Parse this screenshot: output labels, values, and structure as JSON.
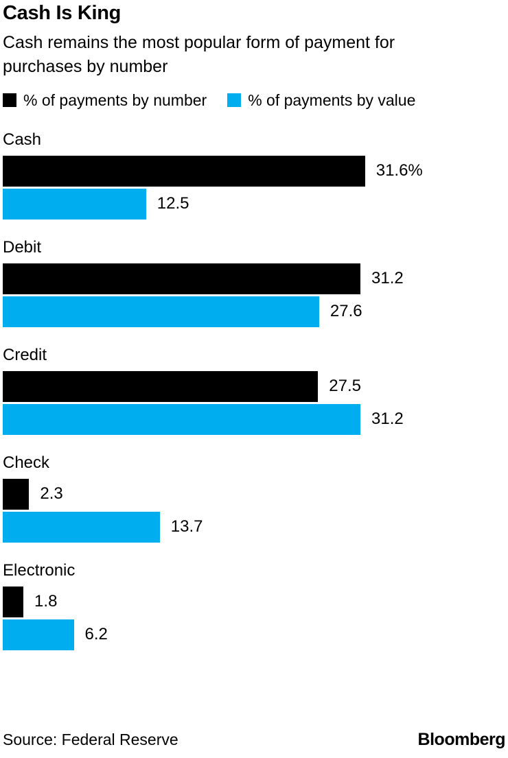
{
  "title": "Cash Is King",
  "subtitle": "Cash remains the most popular form of payment for purchases by number",
  "legend": [
    {
      "label": "% of payments by number",
      "color": "#000000"
    },
    {
      "label": "% of payments by value",
      "color": "#00aeef"
    }
  ],
  "chart_data": {
    "type": "bar",
    "orientation": "horizontal",
    "title": "Cash Is King",
    "subtitle": "Cash remains the most popular form of payment for purchases by number",
    "categories": [
      "Cash",
      "Debit",
      "Credit",
      "Check",
      "Electronic"
    ],
    "series": [
      {
        "name": "% of payments by number",
        "color": "#000000",
        "values": [
          31.6,
          31.2,
          27.5,
          2.3,
          1.8
        ],
        "labels": [
          "31.6%",
          "31.2",
          "27.5",
          "2.3",
          "1.8"
        ]
      },
      {
        "name": "% of payments by value",
        "color": "#00aeef",
        "values": [
          12.5,
          27.6,
          31.2,
          13.7,
          6.2
        ],
        "labels": [
          "12.5",
          "27.6",
          "31.2",
          "13.7",
          "6.2"
        ]
      }
    ],
    "xlim": [
      0,
      44
    ],
    "grid": false,
    "legend_position": "top",
    "value_labels": "outside-end"
  },
  "footer": {
    "source": "Source: Federal Reserve",
    "brand": "Bloomberg"
  }
}
